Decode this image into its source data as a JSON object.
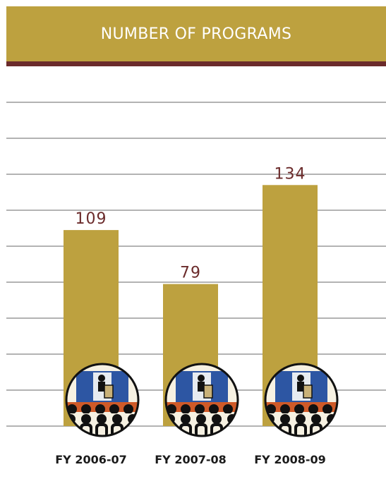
{
  "header": {
    "title": "NUMBER OF PROGRAMS"
  },
  "colors": {
    "banner": "#bda13f",
    "rule": "#6b2b2b",
    "bar": "#bda13f",
    "value_label": "#6b2b2b",
    "grid": "#9a9a9a"
  },
  "chart_data": {
    "type": "bar",
    "title": "NUMBER OF PROGRAMS",
    "categories": [
      "FY 2006-07",
      "FY 2007-08",
      "FY 2008-09"
    ],
    "values": [
      109,
      79,
      134
    ],
    "data_labels": [
      "109",
      "79",
      "134"
    ],
    "ylim": [
      0,
      180
    ],
    "grid": true,
    "bar_icon": "audience-speaker-icon"
  }
}
